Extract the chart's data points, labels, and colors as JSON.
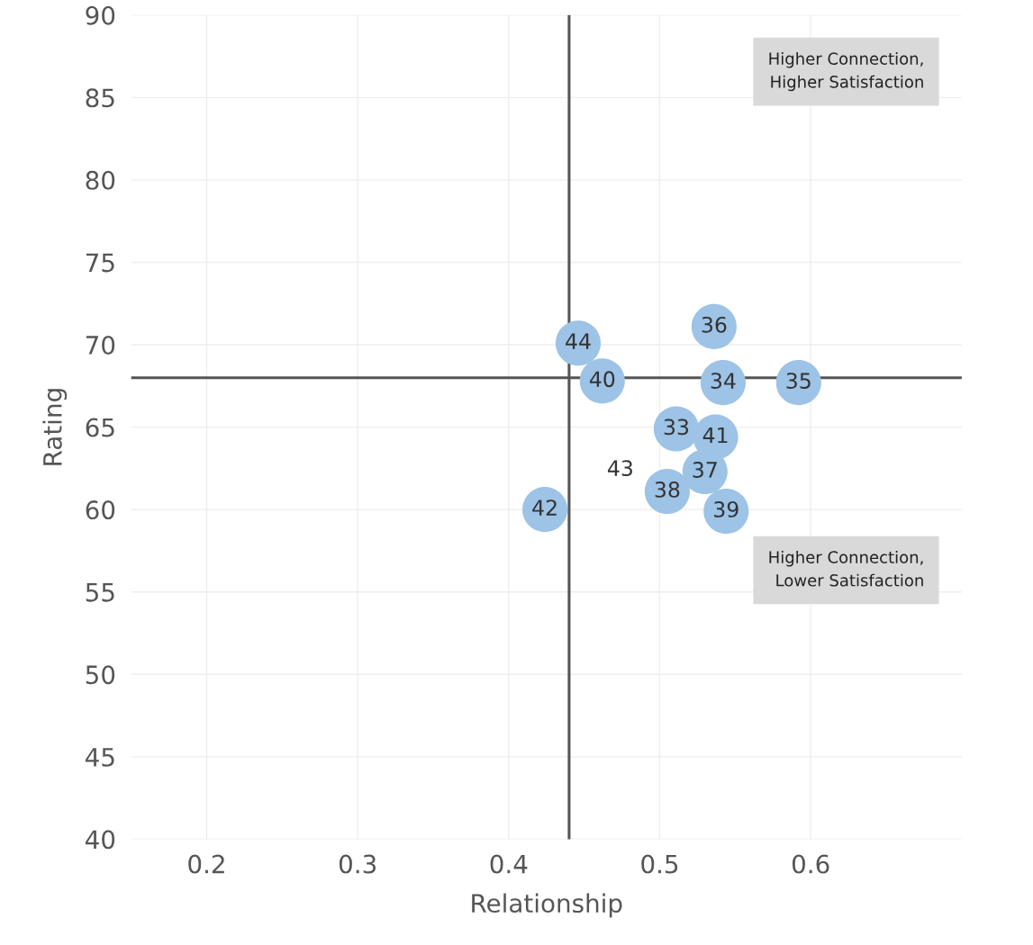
{
  "chart_data": {
    "type": "scatter",
    "xlabel": "Relationship",
    "ylabel": "Rating",
    "series": [
      {
        "name": "44",
        "color": "#9dc3e6",
        "x": [
          0.446
        ],
        "values": [
          70.1
        ]
      },
      {
        "name": "40",
        "color": "#9dc3e6",
        "x": [
          0.462
        ],
        "values": [
          67.8
        ]
      },
      {
        "name": "36",
        "color": "#9dc3e6",
        "x": [
          0.536
        ],
        "values": [
          71.1
        ]
      },
      {
        "name": "34",
        "color": "#9dc3e6",
        "x": [
          0.542
        ],
        "values": [
          67.7
        ]
      },
      {
        "name": "35",
        "color": "#9dc3e6",
        "x": [
          0.592
        ],
        "values": [
          67.7
        ]
      },
      {
        "name": "33",
        "color": "#9dc3e6",
        "x": [
          0.511
        ],
        "values": [
          64.9
        ]
      },
      {
        "name": "41",
        "color": "#9dc3e6",
        "x": [
          0.537
        ],
        "values": [
          64.4
        ]
      },
      {
        "name": "37",
        "color": "#9dc3e6",
        "x": [
          0.53
        ],
        "values": [
          62.3
        ]
      },
      {
        "name": "38",
        "color": "#9dc3e6",
        "x": [
          0.505
        ],
        "values": [
          61.1
        ]
      },
      {
        "name": "39",
        "color": "#9dc3e6",
        "x": [
          0.544
        ],
        "values": [
          59.9
        ]
      },
      {
        "name": "42",
        "color": "#9dc3e6",
        "x": [
          0.424
        ],
        "values": [
          60.0
        ]
      }
    ],
    "marker": "circle",
    "xlim": [
      0.15,
      0.7
    ],
    "ylim": [
      40,
      90
    ],
    "xticks": [
      0.2,
      0.3,
      0.4,
      0.5,
      0.6
    ],
    "yticks": [
      40,
      45,
      50,
      55,
      60,
      65,
      70,
      75,
      80,
      85,
      90
    ],
    "grid": true,
    "ref_lines": [
      {
        "axis": "x",
        "value": 0.44,
        "color": "#555555"
      },
      {
        "axis": "y",
        "value": 68,
        "color": "#555555"
      }
    ],
    "annotations": [
      "43",
      "Higher Connection,\nHigher Satisfaction",
      "Higher Connection,\nLower Satisfaction"
    ]
  }
}
